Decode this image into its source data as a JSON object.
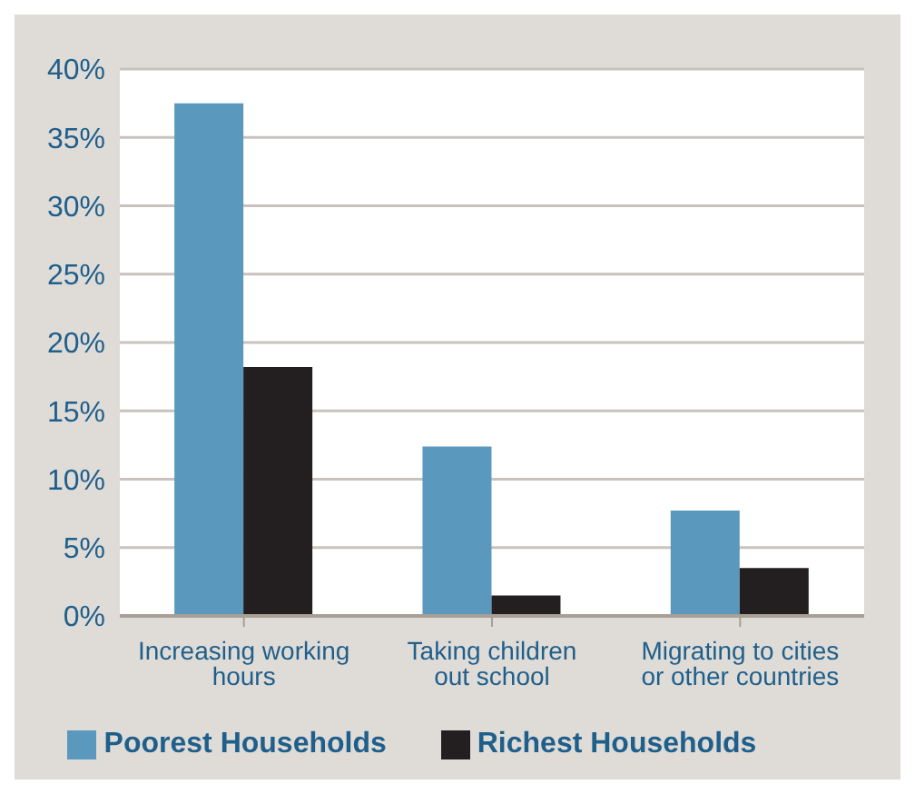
{
  "chart_data": {
    "type": "bar",
    "categories": [
      "Increasing working hours",
      "Taking children out school",
      "Migrating to cities or other countries"
    ],
    "series": [
      {
        "name": "Poorest Households",
        "color": "#5a98bd",
        "values": [
          37.5,
          12.4,
          7.7
        ]
      },
      {
        "name": "Richest Households",
        "color": "#231f20",
        "values": [
          18.2,
          1.5,
          3.5
        ]
      }
    ],
    "ylim": [
      0,
      40
    ],
    "yticks": [
      {
        "value": 0,
        "label": "0%"
      },
      {
        "value": 5,
        "label": "5%"
      },
      {
        "value": 10,
        "label": "10%"
      },
      {
        "value": 15,
        "label": "15%"
      },
      {
        "value": 20,
        "label": "20%"
      },
      {
        "value": 25,
        "label": "25%"
      },
      {
        "value": 30,
        "label": "30%"
      },
      {
        "value": 35,
        "label": "35%"
      },
      {
        "value": 40,
        "label": "40%"
      }
    ],
    "grid": "y",
    "legend": "bottom"
  }
}
